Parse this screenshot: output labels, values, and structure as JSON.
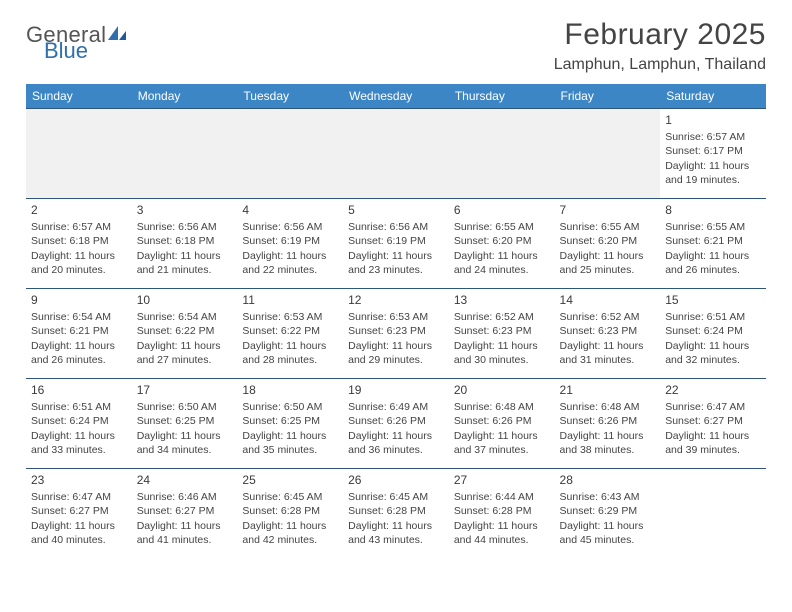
{
  "brand": {
    "general": "General",
    "blue": "Blue"
  },
  "title": "February 2025",
  "location": "Lamphun, Lamphun, Thailand",
  "dayHeaders": [
    "Sunday",
    "Monday",
    "Tuesday",
    "Wednesday",
    "Thursday",
    "Friday",
    "Saturday"
  ],
  "colors": {
    "header_bg": "#3d86c6",
    "header_text": "#ffffff",
    "rule": "#2f567a",
    "text": "#444444",
    "blank_bg": "#f1f1f1",
    "brand_blue": "#2f6fae"
  },
  "weeks": [
    [
      null,
      null,
      null,
      null,
      null,
      null,
      {
        "date": "1",
        "sunrise": "Sunrise: 6:57 AM",
        "sunset": "Sunset: 6:17 PM",
        "daylight": "Daylight: 11 hours and 19 minutes."
      }
    ],
    [
      {
        "date": "2",
        "sunrise": "Sunrise: 6:57 AM",
        "sunset": "Sunset: 6:18 PM",
        "daylight": "Daylight: 11 hours and 20 minutes."
      },
      {
        "date": "3",
        "sunrise": "Sunrise: 6:56 AM",
        "sunset": "Sunset: 6:18 PM",
        "daylight": "Daylight: 11 hours and 21 minutes."
      },
      {
        "date": "4",
        "sunrise": "Sunrise: 6:56 AM",
        "sunset": "Sunset: 6:19 PM",
        "daylight": "Daylight: 11 hours and 22 minutes."
      },
      {
        "date": "5",
        "sunrise": "Sunrise: 6:56 AM",
        "sunset": "Sunset: 6:19 PM",
        "daylight": "Daylight: 11 hours and 23 minutes."
      },
      {
        "date": "6",
        "sunrise": "Sunrise: 6:55 AM",
        "sunset": "Sunset: 6:20 PM",
        "daylight": "Daylight: 11 hours and 24 minutes."
      },
      {
        "date": "7",
        "sunrise": "Sunrise: 6:55 AM",
        "sunset": "Sunset: 6:20 PM",
        "daylight": "Daylight: 11 hours and 25 minutes."
      },
      {
        "date": "8",
        "sunrise": "Sunrise: 6:55 AM",
        "sunset": "Sunset: 6:21 PM",
        "daylight": "Daylight: 11 hours and 26 minutes."
      }
    ],
    [
      {
        "date": "9",
        "sunrise": "Sunrise: 6:54 AM",
        "sunset": "Sunset: 6:21 PM",
        "daylight": "Daylight: 11 hours and 26 minutes."
      },
      {
        "date": "10",
        "sunrise": "Sunrise: 6:54 AM",
        "sunset": "Sunset: 6:22 PM",
        "daylight": "Daylight: 11 hours and 27 minutes."
      },
      {
        "date": "11",
        "sunrise": "Sunrise: 6:53 AM",
        "sunset": "Sunset: 6:22 PM",
        "daylight": "Daylight: 11 hours and 28 minutes."
      },
      {
        "date": "12",
        "sunrise": "Sunrise: 6:53 AM",
        "sunset": "Sunset: 6:23 PM",
        "daylight": "Daylight: 11 hours and 29 minutes."
      },
      {
        "date": "13",
        "sunrise": "Sunrise: 6:52 AM",
        "sunset": "Sunset: 6:23 PM",
        "daylight": "Daylight: 11 hours and 30 minutes."
      },
      {
        "date": "14",
        "sunrise": "Sunrise: 6:52 AM",
        "sunset": "Sunset: 6:23 PM",
        "daylight": "Daylight: 11 hours and 31 minutes."
      },
      {
        "date": "15",
        "sunrise": "Sunrise: 6:51 AM",
        "sunset": "Sunset: 6:24 PM",
        "daylight": "Daylight: 11 hours and 32 minutes."
      }
    ],
    [
      {
        "date": "16",
        "sunrise": "Sunrise: 6:51 AM",
        "sunset": "Sunset: 6:24 PM",
        "daylight": "Daylight: 11 hours and 33 minutes."
      },
      {
        "date": "17",
        "sunrise": "Sunrise: 6:50 AM",
        "sunset": "Sunset: 6:25 PM",
        "daylight": "Daylight: 11 hours and 34 minutes."
      },
      {
        "date": "18",
        "sunrise": "Sunrise: 6:50 AM",
        "sunset": "Sunset: 6:25 PM",
        "daylight": "Daylight: 11 hours and 35 minutes."
      },
      {
        "date": "19",
        "sunrise": "Sunrise: 6:49 AM",
        "sunset": "Sunset: 6:26 PM",
        "daylight": "Daylight: 11 hours and 36 minutes."
      },
      {
        "date": "20",
        "sunrise": "Sunrise: 6:48 AM",
        "sunset": "Sunset: 6:26 PM",
        "daylight": "Daylight: 11 hours and 37 minutes."
      },
      {
        "date": "21",
        "sunrise": "Sunrise: 6:48 AM",
        "sunset": "Sunset: 6:26 PM",
        "daylight": "Daylight: 11 hours and 38 minutes."
      },
      {
        "date": "22",
        "sunrise": "Sunrise: 6:47 AM",
        "sunset": "Sunset: 6:27 PM",
        "daylight": "Daylight: 11 hours and 39 minutes."
      }
    ],
    [
      {
        "date": "23",
        "sunrise": "Sunrise: 6:47 AM",
        "sunset": "Sunset: 6:27 PM",
        "daylight": "Daylight: 11 hours and 40 minutes."
      },
      {
        "date": "24",
        "sunrise": "Sunrise: 6:46 AM",
        "sunset": "Sunset: 6:27 PM",
        "daylight": "Daylight: 11 hours and 41 minutes."
      },
      {
        "date": "25",
        "sunrise": "Sunrise: 6:45 AM",
        "sunset": "Sunset: 6:28 PM",
        "daylight": "Daylight: 11 hours and 42 minutes."
      },
      {
        "date": "26",
        "sunrise": "Sunrise: 6:45 AM",
        "sunset": "Sunset: 6:28 PM",
        "daylight": "Daylight: 11 hours and 43 minutes."
      },
      {
        "date": "27",
        "sunrise": "Sunrise: 6:44 AM",
        "sunset": "Sunset: 6:28 PM",
        "daylight": "Daylight: 11 hours and 44 minutes."
      },
      {
        "date": "28",
        "sunrise": "Sunrise: 6:43 AM",
        "sunset": "Sunset: 6:29 PM",
        "daylight": "Daylight: 11 hours and 45 minutes."
      },
      null
    ]
  ]
}
